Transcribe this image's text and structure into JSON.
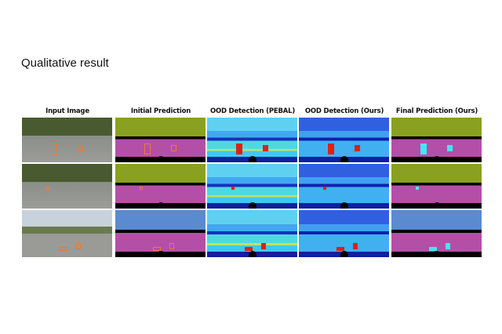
{
  "slide": {
    "title": "Qualitative result"
  },
  "figure": {
    "columns": [
      "Input Image",
      "Initial Prediction",
      "OOD Detection (PEBAL)",
      "OOD Detection (Ours)",
      "Final Prediction (Ours)"
    ],
    "rows": 3
  },
  "colors": {
    "road": "#b44fa8",
    "vegetation": "#8aa020",
    "sky": "#5a8ad0",
    "anomaly_box": "#f07a2a",
    "ood_low": "#2040e0",
    "ood_high": "#e02010",
    "final_ood": "#40e8f0"
  }
}
